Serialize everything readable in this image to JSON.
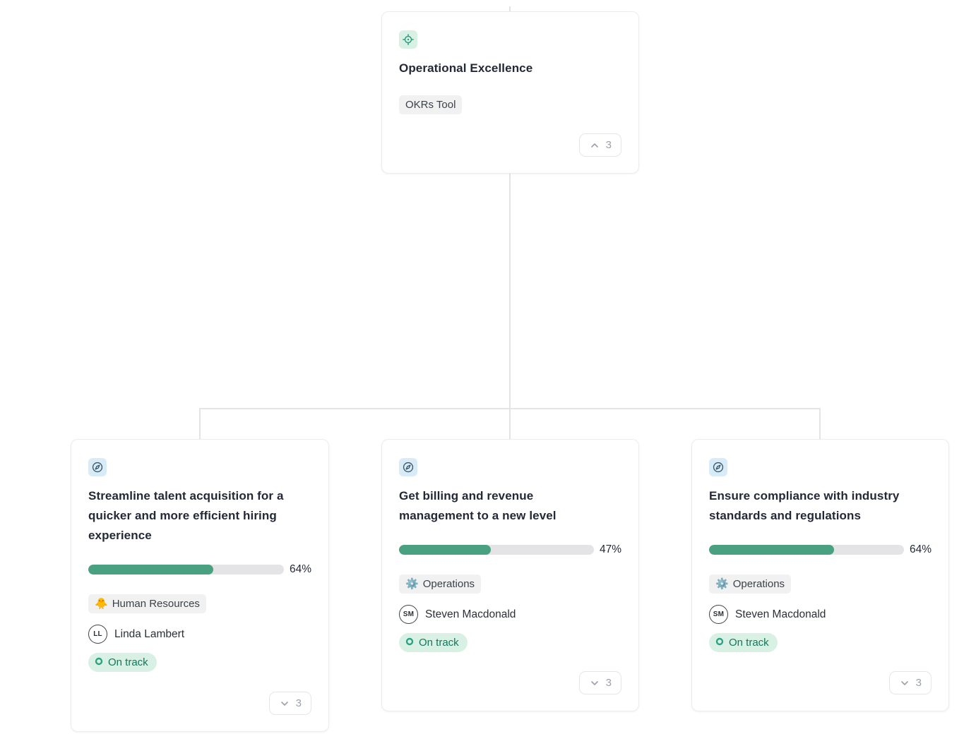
{
  "root_card": {
    "title": "Operational Excellence",
    "tag": "OKRs Tool",
    "collapse_count": "3"
  },
  "children": [
    {
      "title": "Streamline talent acquisition for a quicker and more efficient hiring experience",
      "progress_percent": 64,
      "progress_label": "64%",
      "team_emoji": "🐥",
      "team_label": "Human Resources",
      "owner_initials": "LL",
      "owner_name": "Linda Lambert",
      "status": "On track",
      "expand_count": "3"
    },
    {
      "title": "Get billing and revenue management to a new level",
      "progress_percent": 47,
      "progress_label": "47%",
      "team_emoji": "⚙️",
      "team_label": "Operations",
      "owner_initials": "SM",
      "owner_name": "Steven Macdonald",
      "status": "On track",
      "expand_count": "3"
    },
    {
      "title": "Ensure compliance with industry standards and regulations",
      "progress_percent": 64,
      "progress_label": "64%",
      "team_emoji": "⚙️",
      "team_label": "Operations",
      "owner_initials": "SM",
      "owner_name": "Steven Macdonald",
      "status": "On track",
      "expand_count": "3"
    }
  ],
  "colors": {
    "progress_fill": "#4aa181",
    "progress_track": "#e4e4e6",
    "status_bg": "#d9f1e4",
    "status_text": "#14775a",
    "root_icon_color": "#2f9e7d",
    "root_icon_bg": "#d9f0e5",
    "child_icon_color": "#38566c",
    "child_icon_bg": "#d9ebf6",
    "connector": "#e4e4e7",
    "tag_bg": "#f1f1f2"
  }
}
